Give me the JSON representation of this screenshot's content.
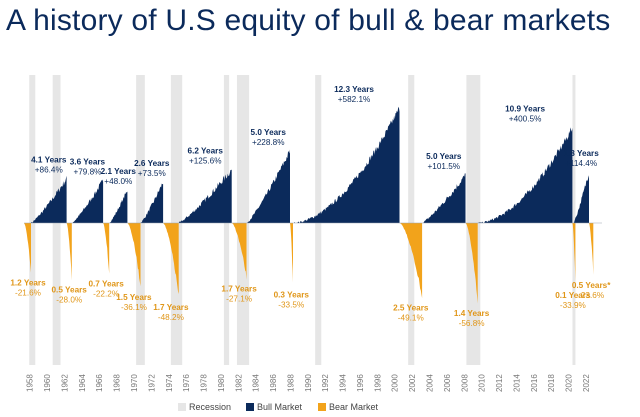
{
  "title": "A history of U.S equity of bull & bear markets",
  "colors": {
    "bull": "#0b2a5b",
    "bear": "#f2a31b",
    "recession": "#e6e6e6",
    "title": "#0b2a5b"
  },
  "legend": {
    "recession": "Recession",
    "bull": "Bull Market",
    "bear": "Bear Market"
  },
  "chart_data": {
    "type": "area",
    "xlim": [
      1957,
      2023.5
    ],
    "x_ticks": [
      "1958",
      "1960",
      "1962",
      "1964",
      "1966",
      "1968",
      "1970",
      "1972",
      "1974",
      "1976",
      "1978",
      "1980",
      "1982",
      "1984",
      "1986",
      "1988",
      "1990",
      "1992",
      "1994",
      "1996",
      "1998",
      "2000",
      "2002",
      "2004",
      "2006",
      "2008",
      "2010",
      "2012",
      "2014",
      "2016",
      "2018",
      "2020",
      "2022"
    ],
    "recessions": [
      [
        1957.6,
        1958.3
      ],
      [
        1960.3,
        1961.2
      ],
      [
        1969.9,
        1970.9
      ],
      [
        1973.9,
        1975.2
      ],
      [
        1980.0,
        1980.6
      ],
      [
        1981.5,
        1982.9
      ],
      [
        1990.5,
        1991.2
      ],
      [
        2001.2,
        2001.9
      ],
      [
        2007.9,
        2009.5
      ],
      [
        2020.1,
        2020.4
      ]
    ],
    "bull_markets": [
      {
        "start": 1957.8,
        "end": 1961.9,
        "duration": "4.1 Years",
        "return": "+86.4%",
        "value": 86.4
      },
      {
        "start": 1962.5,
        "end": 1966.1,
        "duration": "3.6 Years",
        "return": "+79.8%",
        "value": 79.8
      },
      {
        "start": 1966.8,
        "end": 1968.9,
        "duration": "2.1 Years",
        "return": "+48.0%",
        "value": 48.0
      },
      {
        "start": 1970.4,
        "end": 1973.0,
        "duration": "2.6 Years",
        "return": "+73.5%",
        "value": 73.5
      },
      {
        "start": 1974.8,
        "end": 1980.9,
        "duration": "6.2 Years",
        "return": "+125.6%",
        "value": 125.6
      },
      {
        "start": 1982.6,
        "end": 1987.6,
        "duration": "5.0 Years",
        "return": "+228.8%",
        "value": 228.8
      },
      {
        "start": 1987.9,
        "end": 2000.2,
        "duration": "12.3 Years",
        "return": "+582.1%",
        "value": 582.1
      },
      {
        "start": 2002.8,
        "end": 2007.8,
        "duration": "5.0 Years",
        "return": "+101.5%",
        "value": 101.5
      },
      {
        "start": 2009.2,
        "end": 2020.1,
        "duration": "10.9 Years",
        "return": "+400.5%",
        "value": 400.5
      },
      {
        "start": 2020.2,
        "end": 2022.0,
        "duration": "1.8 Years",
        "return": "+114.4%",
        "value": 114.4
      }
    ],
    "bear_markets": [
      {
        "start": 1956.6,
        "end": 1957.8,
        "duration": "1.2 Years",
        "return": "-21.6%",
        "value": -21.6
      },
      {
        "start": 1961.9,
        "end": 1962.5,
        "duration": "0.5 Years",
        "return": "-28.0%",
        "value": -28.0
      },
      {
        "start": 1966.1,
        "end": 1966.8,
        "duration": "0.7 Years",
        "return": "-22.2%",
        "value": -22.2
      },
      {
        "start": 1968.9,
        "end": 1970.4,
        "duration": "1.5 Years",
        "return": "-36.1%",
        "value": -36.1
      },
      {
        "start": 1973.0,
        "end": 1974.8,
        "duration": "1.7 Years",
        "return": "-48.2%",
        "value": -48.2
      },
      {
        "start": 1980.9,
        "end": 1982.6,
        "duration": "1.7 Years",
        "return": "-27.1%",
        "value": -27.1
      },
      {
        "start": 1987.6,
        "end": 1987.9,
        "duration": "0.3 Years",
        "return": "-33.5%",
        "value": -33.5
      },
      {
        "start": 2000.2,
        "end": 2002.8,
        "duration": "2.5 Years",
        "return": "-49.1%",
        "value": -49.1
      },
      {
        "start": 2007.8,
        "end": 2009.2,
        "duration": "1.4 Years",
        "return": "-56.8%",
        "value": -56.8
      },
      {
        "start": 2020.1,
        "end": 2020.2,
        "duration": "0.1 Years",
        "return": "-33.9%",
        "value": -33.9
      },
      {
        "start": 2022.0,
        "end": 2022.5,
        "duration": "0.5 Years*",
        "return": "-23.6%",
        "value": -23.6
      }
    ]
  }
}
